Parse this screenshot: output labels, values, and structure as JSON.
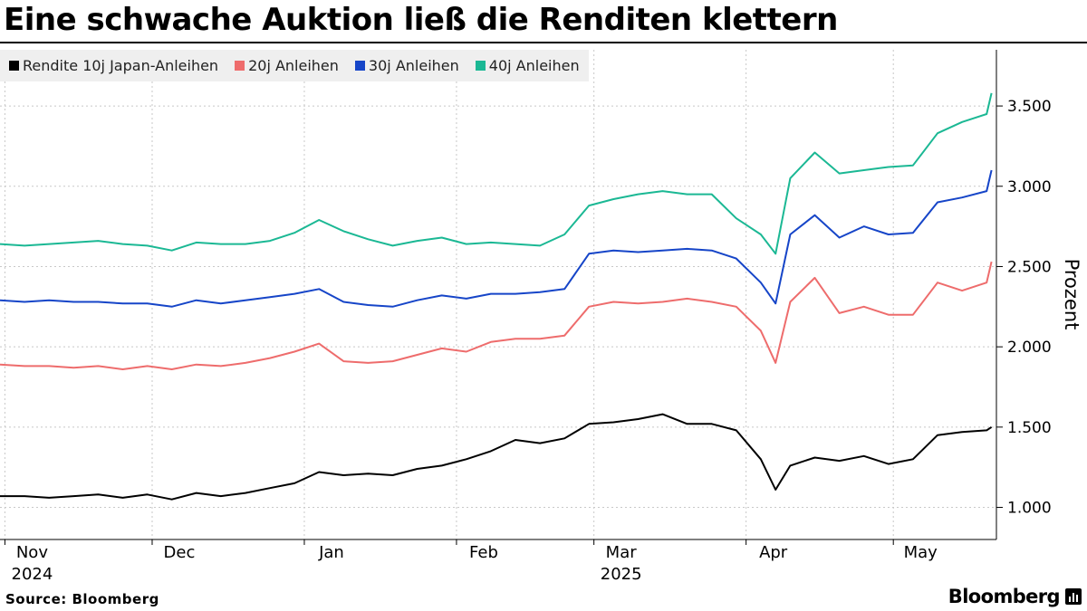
{
  "title": "Eine schwache Auktion ließ die Renditen klettern",
  "source": "Source: Bloomberg",
  "brand": "Bloomberg",
  "chart_data": {
    "type": "line",
    "xlabel": "",
    "ylabel": "Prozent",
    "ylim": [
      0.8,
      3.85
    ],
    "y_ticks": [
      1.0,
      1.5,
      2.0,
      2.5,
      3.0,
      3.5
    ],
    "y_tick_labels": [
      "1.000",
      "1.500",
      "2.000",
      "2.500",
      "3.000",
      "3.500"
    ],
    "x_range": [
      "2024-10-31",
      "2025-05-22"
    ],
    "x_ticks": [
      {
        "label": "Nov",
        "year": "2024",
        "date": "2024-11-01"
      },
      {
        "label": "Dec",
        "year": "",
        "date": "2024-12-01"
      },
      {
        "label": "Jan",
        "year": "",
        "date": "2025-01-01"
      },
      {
        "label": "Feb",
        "year": "",
        "date": "2025-02-01"
      },
      {
        "label": "Mar",
        "year": "2025",
        "date": "2025-03-01"
      },
      {
        "label": "Apr",
        "year": "",
        "date": "2025-04-01"
      },
      {
        "label": "May",
        "year": "",
        "date": "2025-05-01"
      }
    ],
    "grid": true,
    "legend_position": "top-left",
    "x": [
      "2024-10-31",
      "2024-11-05",
      "2024-11-10",
      "2024-11-15",
      "2024-11-20",
      "2024-11-25",
      "2024-11-30",
      "2024-12-05",
      "2024-12-10",
      "2024-12-15",
      "2024-12-20",
      "2024-12-25",
      "2024-12-30",
      "2025-01-04",
      "2025-01-09",
      "2025-01-14",
      "2025-01-19",
      "2025-01-24",
      "2025-01-29",
      "2025-02-03",
      "2025-02-08",
      "2025-02-13",
      "2025-02-18",
      "2025-02-23",
      "2025-02-28",
      "2025-03-05",
      "2025-03-10",
      "2025-03-15",
      "2025-03-20",
      "2025-03-25",
      "2025-03-30",
      "2025-04-04",
      "2025-04-07",
      "2025-04-10",
      "2025-04-15",
      "2025-04-20",
      "2025-04-25",
      "2025-04-30",
      "2025-05-05",
      "2025-05-10",
      "2025-05-15",
      "2025-05-20",
      "2025-05-21"
    ],
    "series": [
      {
        "name": "Rendite 10j Japan-Anleihen",
        "color": "#000000",
        "values": [
          1.07,
          1.07,
          1.06,
          1.07,
          1.08,
          1.06,
          1.08,
          1.05,
          1.09,
          1.07,
          1.09,
          1.12,
          1.15,
          1.22,
          1.2,
          1.21,
          1.2,
          1.24,
          1.26,
          1.3,
          1.35,
          1.42,
          1.4,
          1.43,
          1.52,
          1.53,
          1.55,
          1.58,
          1.52,
          1.52,
          1.48,
          1.3,
          1.11,
          1.26,
          1.31,
          1.29,
          1.32,
          1.27,
          1.3,
          1.45,
          1.47,
          1.48,
          1.5
        ]
      },
      {
        "name": "20j Anleihen",
        "color": "#ee6c6c",
        "values": [
          1.89,
          1.88,
          1.88,
          1.87,
          1.88,
          1.86,
          1.88,
          1.86,
          1.89,
          1.88,
          1.9,
          1.93,
          1.97,
          2.02,
          1.91,
          1.9,
          1.91,
          1.95,
          1.99,
          1.97,
          2.03,
          2.05,
          2.05,
          2.07,
          2.25,
          2.28,
          2.27,
          2.28,
          2.3,
          2.28,
          2.25,
          2.1,
          1.9,
          2.28,
          2.43,
          2.21,
          2.25,
          2.2,
          2.2,
          2.4,
          2.35,
          2.4,
          2.53
        ]
      },
      {
        "name": "30j Anleihen",
        "color": "#1645c8",
        "values": [
          2.29,
          2.28,
          2.29,
          2.28,
          2.28,
          2.27,
          2.27,
          2.25,
          2.29,
          2.27,
          2.29,
          2.31,
          2.33,
          2.36,
          2.28,
          2.26,
          2.25,
          2.29,
          2.32,
          2.3,
          2.33,
          2.33,
          2.34,
          2.36,
          2.58,
          2.6,
          2.59,
          2.6,
          2.61,
          2.6,
          2.55,
          2.4,
          2.27,
          2.7,
          2.82,
          2.68,
          2.75,
          2.7,
          2.71,
          2.9,
          2.93,
          2.97,
          3.1
        ]
      },
      {
        "name": "40j Anleihen",
        "color": "#1bb894",
        "values": [
          2.64,
          2.63,
          2.64,
          2.65,
          2.66,
          2.64,
          2.63,
          2.6,
          2.65,
          2.64,
          2.64,
          2.66,
          2.71,
          2.79,
          2.72,
          2.67,
          2.63,
          2.66,
          2.68,
          2.64,
          2.65,
          2.64,
          2.63,
          2.7,
          2.88,
          2.92,
          2.95,
          2.97,
          2.95,
          2.95,
          2.8,
          2.7,
          2.58,
          3.05,
          3.21,
          3.08,
          3.1,
          3.12,
          3.13,
          3.33,
          3.4,
          3.45,
          3.58
        ]
      }
    ]
  }
}
